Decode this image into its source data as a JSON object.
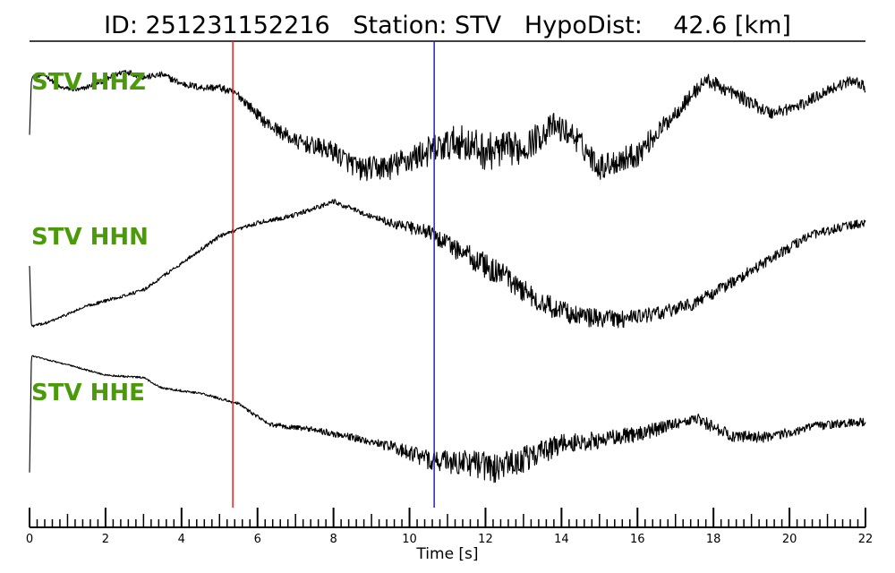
{
  "chart_data": {
    "type": "line",
    "title": "ID: 251231152216   Station: STV   HypoDist:    42.6 [km]",
    "xlabel": "Time [s]",
    "xlim": [
      0,
      22
    ],
    "x_ticks": [
      "0",
      "2",
      "4",
      "6",
      "8",
      "10",
      "12",
      "14",
      "16",
      "18",
      "20",
      "22"
    ],
    "minor_tick_step": 0.2,
    "markers": [
      {
        "time": 5.35,
        "color": "#e8221f"
      },
      {
        "time": 10.65,
        "color": "#2222cc"
      }
    ],
    "label_color": "#4b9a0b",
    "series": [
      {
        "name": "STV HHZ",
        "noise": [
          [
            0,
            0.015
          ],
          [
            5.3,
            0.03
          ],
          [
            8,
            0.08
          ],
          [
            10.6,
            0.12
          ],
          [
            12,
            0.15
          ],
          [
            14,
            0.1
          ],
          [
            16,
            0.1
          ],
          [
            17,
            0.06
          ],
          [
            22,
            0.04
          ]
        ],
        "values": [
          [
            0,
            0.45
          ],
          [
            0.05,
            0.9
          ],
          [
            0.4,
            0.92
          ],
          [
            0.8,
            0.82
          ],
          [
            1.3,
            0.8
          ],
          [
            2,
            0.88
          ],
          [
            2.5,
            0.95
          ],
          [
            3,
            0.9
          ],
          [
            3.5,
            0.92
          ],
          [
            4,
            0.85
          ],
          [
            4.5,
            0.82
          ],
          [
            5,
            0.82
          ],
          [
            5.5,
            0.76
          ],
          [
            6.2,
            0.55
          ],
          [
            7,
            0.4
          ],
          [
            8,
            0.32
          ],
          [
            8.7,
            0.18
          ],
          [
            9.5,
            0.2
          ],
          [
            10.5,
            0.32
          ],
          [
            11.3,
            0.4
          ],
          [
            12,
            0.32
          ],
          [
            13,
            0.35
          ],
          [
            13.8,
            0.52
          ],
          [
            14.3,
            0.45
          ],
          [
            15,
            0.2
          ],
          [
            16,
            0.3
          ],
          [
            17,
            0.62
          ],
          [
            17.8,
            0.88
          ],
          [
            18.5,
            0.78
          ],
          [
            19.5,
            0.62
          ],
          [
            20.3,
            0.68
          ],
          [
            21,
            0.8
          ],
          [
            21.7,
            0.88
          ],
          [
            22,
            0.82
          ]
        ]
      },
      {
        "name": "STV HHN",
        "noise": [
          [
            0,
            0.01
          ],
          [
            5,
            0.015
          ],
          [
            9,
            0.02
          ],
          [
            10.6,
            0.06
          ],
          [
            12,
            0.1
          ],
          [
            14,
            0.08
          ],
          [
            17,
            0.05
          ],
          [
            22,
            0.03
          ]
        ],
        "values": [
          [
            0,
            0.5
          ],
          [
            0.05,
            0.05
          ],
          [
            0.5,
            0.08
          ],
          [
            1.5,
            0.2
          ],
          [
            3,
            0.32
          ],
          [
            4,
            0.52
          ],
          [
            5,
            0.72
          ],
          [
            6,
            0.82
          ],
          [
            7,
            0.88
          ],
          [
            8,
            0.98
          ],
          [
            8.7,
            0.9
          ],
          [
            9.5,
            0.82
          ],
          [
            10.5,
            0.75
          ],
          [
            11.5,
            0.58
          ],
          [
            12.5,
            0.42
          ],
          [
            13.5,
            0.22
          ],
          [
            14.5,
            0.12
          ],
          [
            15.5,
            0.1
          ],
          [
            16.5,
            0.14
          ],
          [
            17.5,
            0.22
          ],
          [
            18.5,
            0.38
          ],
          [
            19.5,
            0.55
          ],
          [
            20.5,
            0.72
          ],
          [
            21.5,
            0.8
          ],
          [
            22,
            0.82
          ]
        ]
      },
      {
        "name": "STV HHE",
        "noise": [
          [
            0,
            0.005
          ],
          [
            5,
            0.01
          ],
          [
            9,
            0.03
          ],
          [
            10.6,
            0.08
          ],
          [
            12,
            0.12
          ],
          [
            14,
            0.08
          ],
          [
            17,
            0.05
          ],
          [
            22,
            0.03
          ]
        ],
        "values": [
          [
            0,
            0.05
          ],
          [
            0.05,
            0.95
          ],
          [
            1,
            0.88
          ],
          [
            2,
            0.8
          ],
          [
            3,
            0.78
          ],
          [
            3.5,
            0.7
          ],
          [
            4.5,
            0.66
          ],
          [
            5.5,
            0.58
          ],
          [
            6.3,
            0.42
          ],
          [
            7.5,
            0.38
          ],
          [
            8.5,
            0.32
          ],
          [
            9.5,
            0.25
          ],
          [
            10.5,
            0.15
          ],
          [
            11.5,
            0.12
          ],
          [
            12.2,
            0.08
          ],
          [
            13,
            0.15
          ],
          [
            14,
            0.27
          ],
          [
            15.5,
            0.32
          ],
          [
            16.5,
            0.38
          ],
          [
            17.5,
            0.47
          ],
          [
            18.5,
            0.33
          ],
          [
            19.5,
            0.32
          ],
          [
            20.5,
            0.4
          ],
          [
            21.5,
            0.43
          ],
          [
            22,
            0.44
          ]
        ]
      }
    ]
  }
}
